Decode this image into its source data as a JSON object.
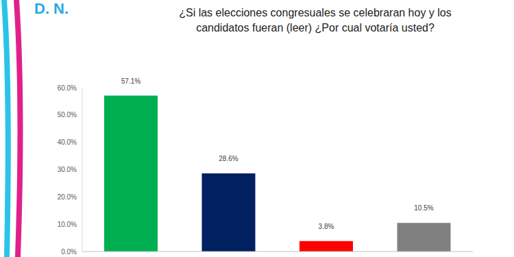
{
  "chart_data": {
    "type": "bar",
    "title": "¿Si las elecciones congresuales se celebraran hoy y los candidatos fueran (leer) ¿Por cual votaría usted?",
    "subtitle": "D. N.",
    "categories": [
      null,
      null,
      null,
      null
    ],
    "values": [
      57.1,
      28.6,
      3.8,
      10.5
    ],
    "value_labels": [
      "57.1%",
      "28.6%",
      "3.8%",
      "10.5%"
    ],
    "data_labels": true,
    "colors": [
      "#00b050",
      "#002060",
      "#ff0000",
      "#808080"
    ],
    "ylim": [
      0,
      60
    ],
    "yticks": [
      {
        "value": 0,
        "label": "0.0%"
      },
      {
        "value": 10,
        "label": "10.0%"
      },
      {
        "value": 20,
        "label": "20.0%"
      },
      {
        "value": 30,
        "label": "30.0%"
      },
      {
        "value": 40,
        "label": "40.0%"
      },
      {
        "value": 50,
        "label": "50.0%"
      },
      {
        "value": 60,
        "label": "60.0%"
      }
    ],
    "grid": false
  }
}
